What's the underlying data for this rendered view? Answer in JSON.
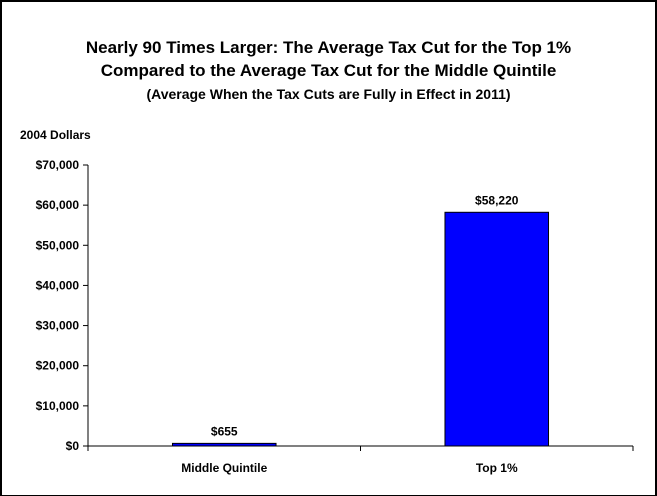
{
  "chart_data": {
    "type": "bar",
    "title_line1": "Nearly 90 Times Larger: The Average Tax Cut for the Top 1%",
    "title_line2": "Compared to the Average Tax Cut for the Middle Quintile",
    "subtitle": "(Average When the Tax Cuts are Fully in Effect in 2011)",
    "ylabel": "2004 Dollars",
    "categories": [
      "Middle Quintile",
      "Top 1%"
    ],
    "values": [
      655,
      58220
    ],
    "data_labels": [
      "$655",
      "$58,220"
    ],
    "ylim": [
      0,
      70000
    ],
    "yticks": [
      0,
      10000,
      20000,
      30000,
      40000,
      50000,
      60000,
      70000
    ],
    "ytick_labels": [
      "$0",
      "$10,000",
      "$20,000",
      "$30,000",
      "$40,000",
      "$50,000",
      "$60,000",
      "$70,000"
    ],
    "bar_color": "#0000ff",
    "grid": false,
    "legend": "none"
  }
}
